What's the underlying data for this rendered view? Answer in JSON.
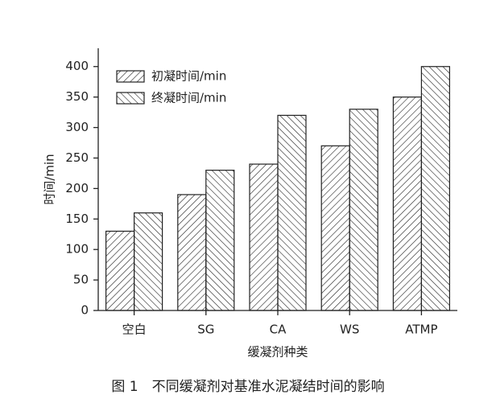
{
  "chart_data": {
    "type": "bar",
    "categories": [
      "空白",
      "SG",
      "CA",
      "WS",
      "ATMP"
    ],
    "series": [
      {
        "name": "初凝时间/min",
        "color": "#222222",
        "values": [
          130,
          190,
          240,
          270,
          350
        ]
      },
      {
        "name": "终凝时间/min",
        "color": "#222222",
        "values": [
          160,
          230,
          320,
          330,
          400
        ]
      }
    ],
    "ylim": [
      0,
      430
    ],
    "yticks": [
      0,
      50,
      100,
      150,
      200,
      250,
      300,
      350,
      400
    ],
    "y_label": "时间/min",
    "x_label": "缓凝剂种类",
    "caption": "图 1　不同缓凝剂对基准水泥凝结时间的影响",
    "legend": "upper left"
  }
}
